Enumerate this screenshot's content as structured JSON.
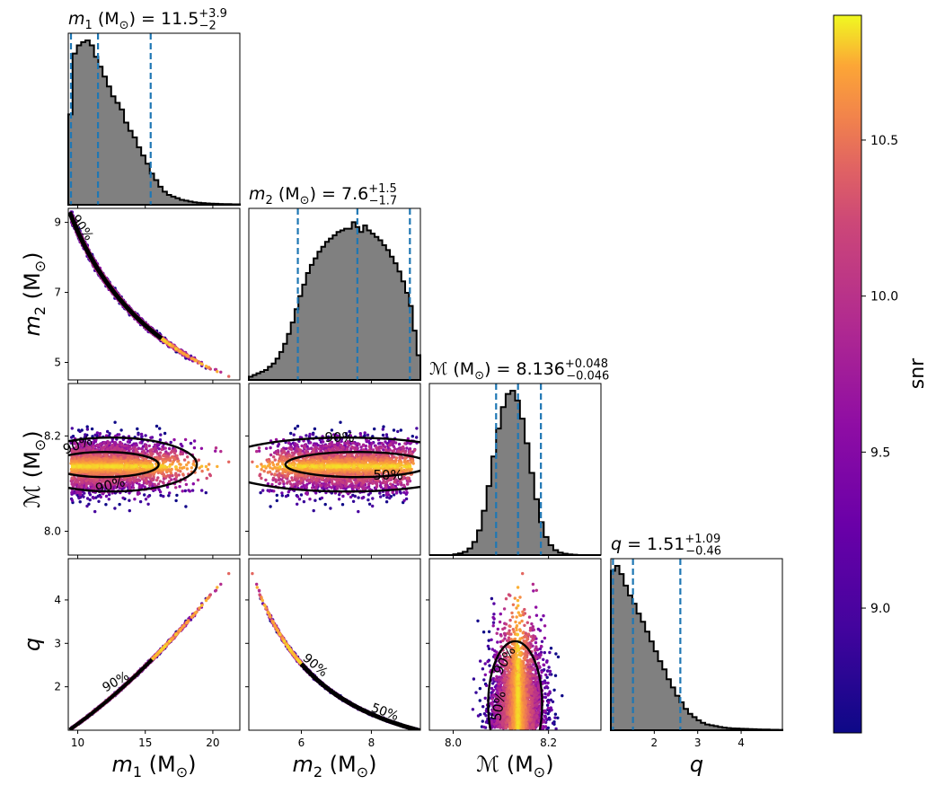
{
  "chart_data": {
    "type": "scatter",
    "subtype": "corner-plot",
    "grid": false,
    "params": [
      {
        "key": "m1",
        "tick_values": [
          10,
          15,
          20
        ],
        "ticks": [
          "10",
          "15",
          "20"
        ],
        "range": [
          9.3,
          22.0
        ],
        "median": 11.5,
        "lo": 9.5,
        "hi": 15.4,
        "title": {
          "sym": "m",
          "sub": "1",
          "unit": " (M",
          "unit_sub": "⊙",
          "tail": ") = 11.5",
          "sup": "+3.9",
          "low": "−2"
        },
        "axis": {
          "sym": "m",
          "sub": "1",
          "unit": " (M",
          "unit_sub": "⊙",
          "close": ")"
        }
      },
      {
        "key": "m2",
        "tick_values": [
          5,
          7,
          9
        ],
        "ticks": [
          "5",
          "7",
          "9"
        ],
        "range": [
          4.5,
          9.4
        ],
        "median": 7.6,
        "lo": 5.9,
        "hi": 9.1,
        "x_tick_values": [
          6,
          8
        ],
        "x_ticks": [
          "6",
          "8"
        ],
        "title": {
          "sym": "m",
          "sub": "2",
          "unit": " (M",
          "unit_sub": "⊙",
          "tail": ") = 7.6",
          "sup": "+1.5",
          "low": "−1.7"
        },
        "axis": {
          "sym": "m",
          "sub": "2",
          "unit": " (M",
          "unit_sub": "⊙",
          "close": ")"
        }
      },
      {
        "key": "mc",
        "tick_values": [
          8.0,
          8.2
        ],
        "ticks": [
          "8.0",
          "8.2"
        ],
        "range": [
          7.95,
          8.31
        ],
        "median": 8.136,
        "lo": 8.09,
        "hi": 8.184,
        "title": {
          "sym": "ℳ",
          "sub": "",
          "unit": " (M",
          "unit_sub": "⊙",
          "tail": ") = 8.136",
          "sup": "+0.048",
          "low": "−0.046"
        },
        "axis": {
          "sym": "ℳ",
          "sub": "",
          "unit": " (M",
          "unit_sub": "⊙",
          "close": ")"
        }
      },
      {
        "key": "q",
        "tick_values": [
          2,
          3,
          4
        ],
        "ticks": [
          "2",
          "3",
          "4"
        ],
        "range": [
          1.0,
          4.95
        ],
        "median": 1.51,
        "lo": 1.05,
        "hi": 2.6,
        "title": {
          "sym": "q",
          "sub": "",
          "unit": "",
          "unit_sub": "",
          "tail": " = 1.51",
          "sup": "+1.09",
          "low": "−0.46"
        },
        "axis": {
          "sym": "q",
          "sub": "",
          "unit": "",
          "unit_sub": "",
          "close": ""
        }
      }
    ],
    "histograms": {
      "m1": [
        0.55,
        0.92,
        0.97,
        0.99,
        1.0,
        0.97,
        0.9,
        0.84,
        0.78,
        0.72,
        0.66,
        0.62,
        0.58,
        0.5,
        0.45,
        0.41,
        0.35,
        0.3,
        0.25,
        0.19,
        0.15,
        0.11,
        0.08,
        0.06,
        0.05,
        0.04,
        0.03,
        0.025,
        0.02,
        0.015,
        0.012,
        0.01,
        0.008,
        0.007,
        0.006,
        0.005,
        0.004,
        0.004,
        0.003,
        0.003
      ],
      "m2": [
        0.02,
        0.03,
        0.04,
        0.05,
        0.06,
        0.08,
        0.1,
        0.13,
        0.17,
        0.22,
        0.28,
        0.35,
        0.43,
        0.51,
        0.58,
        0.65,
        0.7,
        0.74,
        0.78,
        0.81,
        0.84,
        0.86,
        0.88,
        0.9,
        0.91,
        0.92,
        0.92,
        0.96,
        0.93,
        0.9,
        0.94,
        0.91,
        0.89,
        0.87,
        0.85,
        0.82,
        0.79,
        0.75,
        0.71,
        0.66,
        0.6,
        0.53,
        0.45,
        0.3,
        0.15
      ],
      "mc": [
        0.0,
        0.0,
        0.0,
        0.0,
        0.0,
        0.005,
        0.01,
        0.02,
        0.04,
        0.08,
        0.15,
        0.27,
        0.42,
        0.6,
        0.77,
        0.9,
        0.98,
        1.0,
        0.94,
        0.83,
        0.68,
        0.5,
        0.34,
        0.2,
        0.11,
        0.06,
        0.03,
        0.015,
        0.008,
        0.004,
        0.002,
        0.0,
        0.0,
        0.0,
        0.0,
        0.0
      ],
      "q": [
        0.97,
        1.0,
        0.95,
        0.88,
        0.82,
        0.77,
        0.71,
        0.66,
        0.6,
        0.54,
        0.48,
        0.42,
        0.37,
        0.31,
        0.26,
        0.21,
        0.17,
        0.13,
        0.1,
        0.08,
        0.06,
        0.045,
        0.035,
        0.03,
        0.025,
        0.02,
        0.016,
        0.013,
        0.011,
        0.01,
        0.009,
        0.008,
        0.007,
        0.006,
        0.005,
        0.004,
        0.004,
        0.003,
        0.003,
        0.002
      ]
    },
    "contour_labels": [
      "90%",
      "50%"
    ],
    "colorbar": {
      "label": "snr",
      "ticks": [
        9.0,
        9.5,
        10.0,
        10.5
      ],
      "tick_labels": [
        "9.0",
        "9.5",
        "10.0",
        "10.5"
      ],
      "range": [
        8.6,
        10.9
      ],
      "cmap": "plasma"
    },
    "colors": {
      "hist_fill": "#808080",
      "hist_edge": "#000000",
      "quantile_line": "#1f77b4",
      "contour": "#000000"
    }
  }
}
